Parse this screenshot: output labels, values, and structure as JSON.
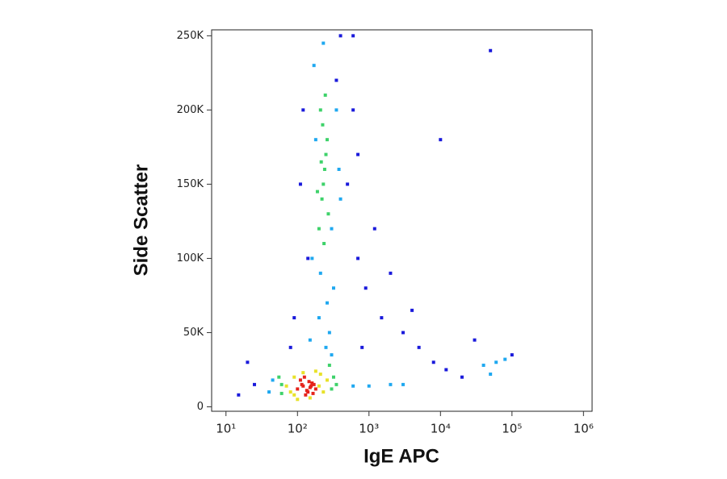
{
  "chart_data": {
    "type": "scatter",
    "x_label": "IgE APC",
    "y_label": "Side Scatter",
    "xscale": "log",
    "xlim": [
      6.3,
      1320000
    ],
    "ylim": [
      -3000,
      254000
    ],
    "xticks": [
      {
        "value": 10,
        "label": "10¹"
      },
      {
        "value": 100,
        "label": "10²"
      },
      {
        "value": 1000,
        "label": "10³"
      },
      {
        "value": 10000,
        "label": "10⁴"
      },
      {
        "value": 100000,
        "label": "10⁵"
      },
      {
        "value": 1000000,
        "label": "10⁶"
      }
    ],
    "yticks": [
      0,
      {
        "value": 50000,
        "label": "50K"
      },
      {
        "value": 100000,
        "label": "100K"
      },
      {
        "value": 150000,
        "label": "150K"
      },
      {
        "value": 200000,
        "label": "200K"
      },
      {
        "value": 250000,
        "label": "250K"
      }
    ],
    "series": [
      {
        "color": "#1a1adb",
        "x": [
          120,
          140,
          110,
          500,
          700,
          900,
          1500,
          3000,
          5000,
          8000,
          12000,
          20000,
          30000,
          50000,
          100000,
          400,
          600,
          90,
          80,
          700,
          1200,
          2000,
          25,
          20,
          15,
          10000,
          4000,
          600,
          800,
          350
        ],
        "values": [
          200000,
          100000,
          150000,
          150000,
          100000,
          80000,
          60000,
          50000,
          40000,
          30000,
          25000,
          20000,
          45000,
          240000,
          35000,
          250000,
          200000,
          60000,
          40000,
          170000,
          120000,
          90000,
          15000,
          30000,
          8000,
          180000,
          65000,
          250000,
          40000,
          220000
        ]
      },
      {
        "color": "#1fa8f0",
        "x": [
          160,
          180,
          300,
          350,
          170,
          320,
          200,
          380,
          250,
          280,
          230,
          400,
          600,
          1000,
          2000,
          3000,
          40000,
          60000,
          80000,
          50000,
          45,
          40,
          210,
          260,
          300,
          150
        ],
        "values": [
          100000,
          180000,
          120000,
          200000,
          230000,
          80000,
          60000,
          160000,
          40000,
          50000,
          245000,
          140000,
          14000,
          14000,
          15000,
          15000,
          28000,
          30000,
          32000,
          22000,
          18000,
          10000,
          90000,
          70000,
          35000,
          45000
        ]
      },
      {
        "color": "#3ed26a",
        "x": [
          200,
          220,
          240,
          260,
          210,
          230,
          250,
          270,
          190,
          225,
          245,
          215,
          235,
          60,
          55,
          300,
          320,
          280,
          60,
          350
        ],
        "values": [
          120000,
          140000,
          160000,
          180000,
          200000,
          150000,
          170000,
          130000,
          145000,
          190000,
          210000,
          165000,
          110000,
          15000,
          20000,
          12000,
          20000,
          28000,
          9000,
          15000
        ]
      },
      {
        "color": "#e8e22a",
        "x": [
          70,
          80,
          90,
          200,
          230,
          260,
          90,
          210,
          120,
          180,
          150,
          100
        ],
        "values": [
          14000,
          10000,
          20000,
          14000,
          10000,
          18000,
          8000,
          22000,
          23000,
          24000,
          6000,
          5000
        ]
      },
      {
        "color": "#e5231b",
        "x": [
          100,
          120,
          140,
          160,
          180,
          110,
          130,
          150,
          170,
          125,
          145,
          165,
          135,
          115,
          155
        ],
        "values": [
          12000,
          14000,
          10000,
          16000,
          12000,
          18000,
          8000,
          13000,
          15000,
          20000,
          17000,
          9000,
          11000,
          15000,
          14000
        ]
      }
    ]
  }
}
